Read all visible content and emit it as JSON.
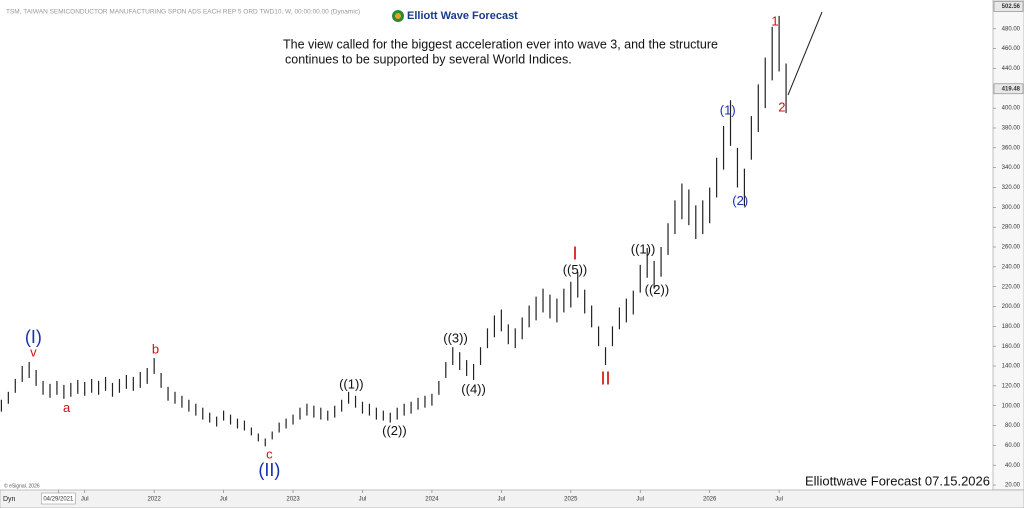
{
  "chart_data": {
    "type": "ohlc",
    "title": "TSM, TAIWAN SEMICONDUCTOR MANUFACTURING SPON ADS EACH REP 5 ORD TWD10, W, 00:00:00.00 (Dynamic)",
    "logo": "Elliott Wave Forecast",
    "annotation": [
      "The view called for the biggest acceleration ever into wave 3, and the structure",
      "continues to be supported by several World Indices."
    ],
    "footer": "Elliottwave Forecast 07.15.2026",
    "copyright": "© eSignal, 2026",
    "corner_label": "Dyn",
    "color": "#222222",
    "xlim": [
      2020.89,
      2028.04
    ],
    "ylim": [
      15,
      504
    ],
    "xticks": [
      {
        "value": 2021.31,
        "label": "04/29/2021"
      },
      {
        "value": 2021.5,
        "label": "Jul"
      },
      2022,
      {
        "value": 2022.5,
        "label": "Jul"
      },
      2023,
      {
        "value": 2023.5,
        "label": "Jul"
      },
      2024,
      {
        "value": 2024.5,
        "label": "Jul"
      },
      2025,
      {
        "value": 2025.5,
        "label": "Jul"
      },
      2026,
      {
        "value": 2026.5,
        "label": "Jul"
      }
    ],
    "yticks": [
      {
        "value": 20,
        "label": "20.00"
      },
      {
        "value": 40,
        "label": "40.00"
      },
      {
        "value": 60,
        "label": "60.00"
      },
      {
        "value": 80,
        "label": "80.00"
      },
      {
        "value": 100,
        "label": "100.00"
      },
      {
        "value": 120,
        "label": "120.00"
      },
      {
        "value": 140,
        "label": "140.00"
      },
      {
        "value": 160,
        "label": "160.00"
      },
      {
        "value": 180,
        "label": "180.00"
      },
      {
        "value": 200,
        "label": "200.00"
      },
      {
        "value": 220,
        "label": "220.00"
      },
      {
        "value": 240,
        "label": "240.00"
      },
      {
        "value": 260,
        "label": "260.00"
      },
      {
        "value": 280,
        "label": "280.00"
      },
      {
        "value": 300,
        "label": "300.00"
      },
      {
        "value": 320,
        "label": "320.00"
      },
      {
        "value": 340,
        "label": "340.00"
      },
      {
        "value": 360,
        "label": "360.00"
      },
      {
        "value": 380,
        "label": "380.00"
      },
      {
        "value": 400,
        "label": "400.00"
      },
      {
        "value": 440,
        "label": "440.00"
      },
      {
        "value": 460,
        "label": "460.00"
      },
      {
        "value": 480,
        "label": "480.00"
      }
    ],
    "price_markers": [
      502.56,
      419.48
    ],
    "x": [
      2020.9,
      2020.95,
      2021.0,
      2021.05,
      2021.1,
      2021.15,
      2021.2,
      2021.25,
      2021.3,
      2021.35,
      2021.4,
      2021.45,
      2021.5,
      2021.55,
      2021.6,
      2021.65,
      2021.7,
      2021.75,
      2021.8,
      2021.85,
      2021.9,
      2021.95,
      2022.0,
      2022.05,
      2022.1,
      2022.15,
      2022.2,
      2022.25,
      2022.3,
      2022.35,
      2022.4,
      2022.45,
      2022.5,
      2022.55,
      2022.6,
      2022.65,
      2022.7,
      2022.75,
      2022.8,
      2022.85,
      2022.9,
      2022.95,
      2023.0,
      2023.05,
      2023.1,
      2023.15,
      2023.2,
      2023.25,
      2023.3,
      2023.35,
      2023.4,
      2023.45,
      2023.5,
      2023.55,
      2023.6,
      2023.65,
      2023.7,
      2023.75,
      2023.8,
      2023.85,
      2023.9,
      2023.95,
      2024.0,
      2024.05,
      2024.1,
      2024.15,
      2024.2,
      2024.25,
      2024.3,
      2024.35,
      2024.4,
      2024.45,
      2024.5,
      2024.55,
      2024.6,
      2024.65,
      2024.7,
      2024.75,
      2024.8,
      2024.85,
      2024.9,
      2024.95,
      2025.0,
      2025.05,
      2025.1,
      2025.15,
      2025.2,
      2025.25,
      2025.3,
      2025.35,
      2025.4,
      2025.45,
      2025.5,
      2025.55,
      2025.6,
      2025.65,
      2025.7,
      2025.75,
      2025.8,
      2025.85,
      2025.9,
      2025.95,
      2026.0,
      2026.05,
      2026.1,
      2026.15,
      2026.2,
      2026.25,
      2026.3,
      2026.35,
      2026.4,
      2026.45,
      2026.5,
      2026.55
    ],
    "high": [
      106,
      114,
      127,
      140,
      144,
      136,
      125,
      122,
      125,
      121,
      123,
      126,
      124,
      127,
      125,
      129,
      123,
      127,
      131,
      129,
      134,
      138,
      148,
      133,
      119,
      114,
      110,
      106,
      102,
      98,
      93,
      89,
      95,
      91,
      87,
      85,
      78,
      72,
      67,
      74,
      83,
      87,
      91,
      98,
      102,
      100,
      98,
      95,
      100,
      106,
      114,
      110,
      104,
      102,
      98,
      95,
      93,
      98,
      102,
      104,
      108,
      110,
      112,
      125,
      144,
      159,
      154,
      146,
      142,
      159,
      178,
      191,
      197,
      182,
      178,
      189,
      201,
      210,
      218,
      212,
      208,
      218,
      225,
      235,
      217,
      201,
      180,
      159,
      180,
      199,
      208,
      216,
      242,
      259,
      246,
      260,
      284,
      307,
      324,
      318,
      302,
      307,
      320,
      350,
      382,
      408,
      360,
      339,
      392,
      424,
      451,
      482,
      493,
      445
    ],
    "low": [
      94,
      102,
      113,
      124,
      128,
      120,
      111,
      108,
      111,
      107,
      109,
      112,
      110,
      113,
      111,
      115,
      109,
      113,
      117,
      115,
      118,
      122,
      132,
      118,
      105,
      102,
      98,
      94,
      90,
      86,
      83,
      79,
      85,
      81,
      77,
      75,
      70,
      64,
      59,
      66,
      73,
      77,
      81,
      86,
      90,
      88,
      86,
      85,
      88,
      94,
      102,
      98,
      92,
      90,
      86,
      85,
      83,
      86,
      90,
      92,
      96,
      98,
      100,
      111,
      128,
      141,
      136,
      130,
      126,
      141,
      158,
      169,
      175,
      162,
      158,
      167,
      179,
      186,
      194,
      188,
      184,
      194,
      199,
      209,
      193,
      179,
      160,
      141,
      160,
      177,
      184,
      192,
      214,
      229,
      218,
      230,
      252,
      273,
      288,
      282,
      268,
      273,
      284,
      310,
      338,
      362,
      320,
      301,
      348,
      376,
      400,
      428,
      437,
      395
    ],
    "wave_labels": [
      {
        "text": "(I)",
        "x": 2021.13,
        "y": 168,
        "color": "#1a2fb0",
        "size": "large"
      },
      {
        "text": "v",
        "x": 2021.13,
        "y": 153,
        "color": "#d01010",
        "size": "normal"
      },
      {
        "text": "a",
        "x": 2021.37,
        "y": 97,
        "color": "#d01010",
        "size": "normal"
      },
      {
        "text": "b",
        "x": 2022.01,
        "y": 156,
        "color": "#d01010",
        "size": "normal"
      },
      {
        "text": "c",
        "x": 2022.83,
        "y": 50,
        "color": "#d01010",
        "size": "normal"
      },
      {
        "text": "(II)",
        "x": 2022.83,
        "y": 34,
        "color": "#1a2fb0",
        "size": "large"
      },
      {
        "text": "((1))",
        "x": 2023.42,
        "y": 121,
        "color": "#111111",
        "size": "normal"
      },
      {
        "text": "((2))",
        "x": 2023.73,
        "y": 74,
        "color": "#111111",
        "size": "normal"
      },
      {
        "text": "((3))",
        "x": 2024.17,
        "y": 167,
        "color": "#111111",
        "size": "normal"
      },
      {
        "text": "((4))",
        "x": 2024.3,
        "y": 116,
        "color": "#111111",
        "size": "normal"
      },
      {
        "text": "I",
        "x": 2025.03,
        "y": 252,
        "color": "#d01010",
        "size": "large"
      },
      {
        "text": "((5))",
        "x": 2025.03,
        "y": 236,
        "color": "#111111",
        "size": "normal"
      },
      {
        "text": "II",
        "x": 2025.25,
        "y": 126,
        "color": "#d01010",
        "size": "large"
      },
      {
        "text": "((1))",
        "x": 2025.52,
        "y": 257,
        "color": "#111111",
        "size": "normal"
      },
      {
        "text": "((2))",
        "x": 2025.62,
        "y": 216,
        "color": "#111111",
        "size": "normal"
      },
      {
        "text": "(1)",
        "x": 2026.13,
        "y": 397,
        "color": "#1a2fb0",
        "size": "normal"
      },
      {
        "text": "(2)",
        "x": 2026.22,
        "y": 306,
        "color": "#1a2fb0",
        "size": "normal"
      },
      {
        "text": "1",
        "x": 2026.47,
        "y": 487,
        "color": "#d01010",
        "size": "normal"
      },
      {
        "text": "2",
        "x": 2026.52,
        "y": 400,
        "color": "#d01010",
        "size": "normal"
      }
    ]
  }
}
